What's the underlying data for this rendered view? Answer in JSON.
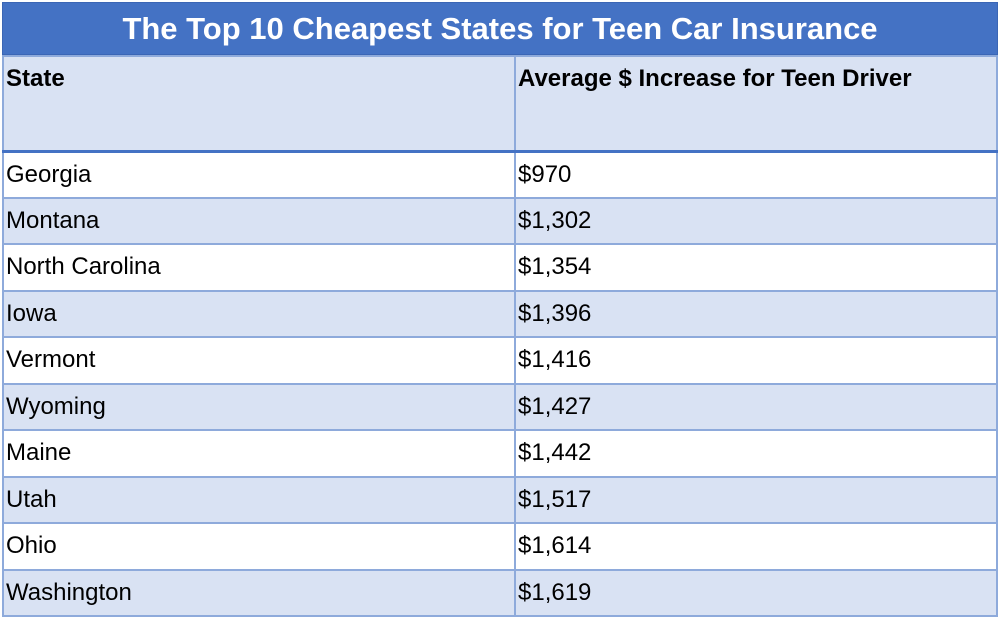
{
  "chart_data": {
    "type": "table",
    "title": "The Top 10 Cheapest States for Teen Car Insurance",
    "columns": [
      "State",
      "Average $ Increase for Teen Driver"
    ],
    "rows": [
      [
        "Georgia",
        "$970"
      ],
      [
        "Montana",
        "$1,302"
      ],
      [
        "North Carolina",
        "$1,354"
      ],
      [
        "Iowa",
        "$1,396"
      ],
      [
        "Vermont",
        "$1,416"
      ],
      [
        "Wyoming",
        "$1,427"
      ],
      [
        "Maine",
        "$1,442"
      ],
      [
        "Utah",
        "$1,517"
      ],
      [
        "Ohio",
        "$1,614"
      ],
      [
        "Washington",
        "$1,619"
      ]
    ],
    "colors": {
      "title_bg": "#4472c4",
      "band": "#d9e2f3",
      "border": "#8eaadb"
    }
  }
}
